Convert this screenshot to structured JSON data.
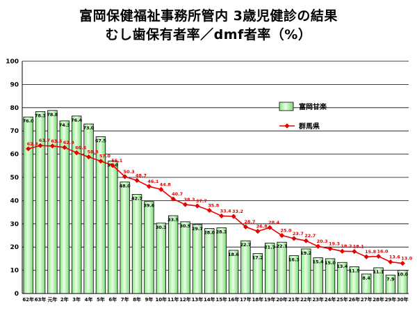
{
  "chart_data": {
    "type": "bar",
    "title": "富岡保健福祉事務所管内 3歳児健診の結果",
    "subtitle": "むし歯保有者率／dmf者率（%）",
    "categories": [
      "62年",
      "63年",
      "元年",
      "2年",
      "3年",
      "4年",
      "5年",
      "6年",
      "7年",
      "8年",
      "9年",
      "10年",
      "11年",
      "12年",
      "13年",
      "14年",
      "15年",
      "16年",
      "17年",
      "18年",
      "19年",
      "20年",
      "21年",
      "22年",
      "23年",
      "24年",
      "25年",
      "26年",
      "27年",
      "28年",
      "29年",
      "30年"
    ],
    "ylim": [
      0,
      100
    ],
    "yticks": [
      0,
      10,
      20,
      30,
      40,
      50,
      60,
      70,
      80,
      90,
      100
    ],
    "grid": true,
    "legend_position": "right",
    "series": [
      {
        "name": "富岡甘楽",
        "kind": "bar",
        "color": "#b6f5b0",
        "labels": [
          "76.0",
          "78.3",
          "78.8",
          "74.3",
          "76.4",
          "73.0",
          "67.5",
          "57.0",
          "48.0",
          "42.7",
          "39.6",
          "30.3",
          "33.5",
          "30.9",
          "29.7",
          "28.0",
          "28.3",
          "18.6",
          "22.7",
          "17.2",
          "21.7",
          "22.1",
          "16.3",
          "19.2",
          "15.4",
          "15.0",
          "13.4",
          "11.5",
          "8.4",
          "11.1",
          "7.9",
          "10.0"
        ],
        "values": [
          76.0,
          78.3,
          78.8,
          74.3,
          76.4,
          73.0,
          67.5,
          57.0,
          48.0,
          42.7,
          39.6,
          30.3,
          33.5,
          30.9,
          29.7,
          28.0,
          28.3,
          18.6,
          22.7,
          17.2,
          21.7,
          22.1,
          16.3,
          19.2,
          15.4,
          15.0,
          13.4,
          11.5,
          8.4,
          11.1,
          7.9,
          10.0
        ]
      },
      {
        "name": "群馬県",
        "kind": "line",
        "color": "#e60000",
        "labels": [
          "62.3",
          "63.7",
          "63.5",
          "62.9",
          "60.6",
          "58.8",
          "57.0",
          "55.1",
          "50.3",
          "48.7",
          "46.1",
          "44.8",
          "40.7",
          "38.3",
          "37.7",
          "35.8",
          "33.4",
          "33.2",
          "28.7",
          "26.8",
          "28.4",
          "25.0",
          "23.7",
          "22.7",
          "20.3",
          "19.3",
          "18.2",
          "18.1",
          "15.8",
          "16.0",
          "13.6",
          "13.0"
        ],
        "values": [
          62.3,
          63.7,
          63.5,
          62.9,
          60.6,
          58.8,
          57.0,
          55.1,
          50.3,
          48.7,
          46.1,
          44.8,
          40.7,
          38.3,
          37.7,
          35.8,
          33.4,
          33.2,
          28.7,
          26.8,
          28.4,
          25.0,
          23.7,
          22.7,
          20.3,
          19.3,
          18.2,
          18.1,
          15.8,
          16.0,
          13.6,
          13.0
        ]
      }
    ]
  },
  "colors": {
    "bar_border": "#000000",
    "line": "#e60000",
    "grid": "#000000"
  }
}
